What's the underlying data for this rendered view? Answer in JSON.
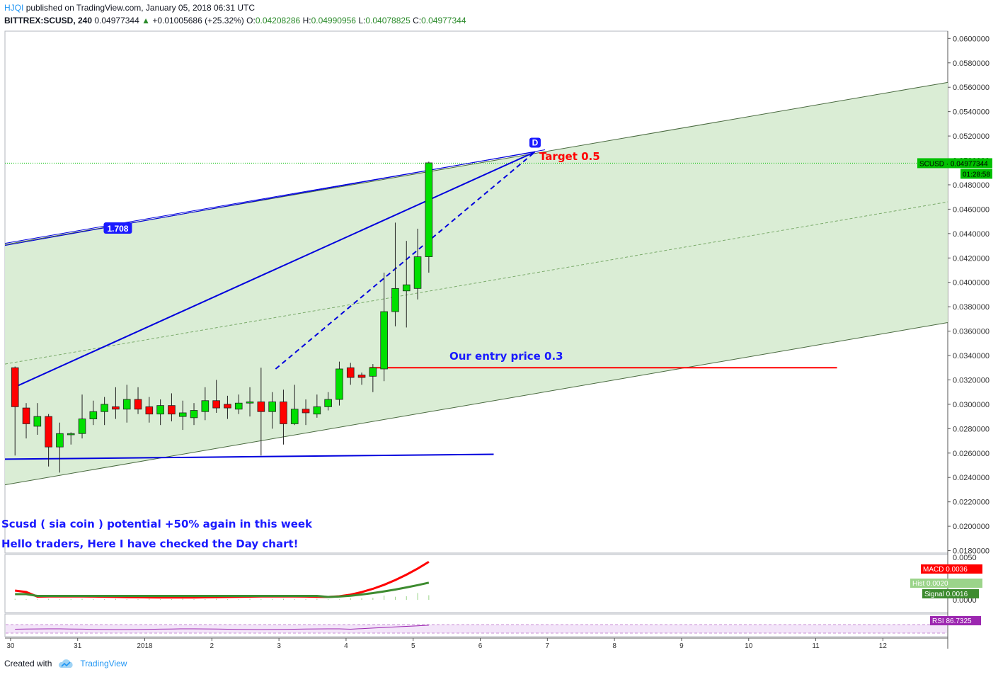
{
  "header": {
    "user": "HJQI",
    "published": "published on TradingView.com, January 05, 2018 06:31 UTC",
    "symbol": "BITTREX:SCUSD, 240",
    "last": "0.04977344",
    "change": "+0.01005686 (+25.32%)",
    "o_label": "O:",
    "o_value": "0.04208286",
    "h_label": "H:",
    "h_value": "0.04990956",
    "l_label": "L:",
    "l_value": "0.04078825",
    "c_label": "C:",
    "c_value": "0.04977344"
  },
  "footer": {
    "created_with": "Created with",
    "brand": "TradingView"
  },
  "chart_data": {
    "type": "candlestick",
    "symbol": "BITTREX:SCUSD",
    "interval": "240",
    "ylim": [
      0.0178,
      0.0606
    ],
    "y_ticks": [
      "0.0600000",
      "0.0580000",
      "0.0560000",
      "0.0540000",
      "0.0520000",
      "0.0500000",
      "0.0480000",
      "0.0460000",
      "0.0440000",
      "0.0420000",
      "0.0400000",
      "0.0380000",
      "0.0360000",
      "0.0340000",
      "0.0320000",
      "0.0300000",
      "0.0280000",
      "0.0260000",
      "0.0240000",
      "0.0220000",
      "0.0200000",
      "0.0180000"
    ],
    "x_labels": [
      {
        "label": "30",
        "bar": -0.4
      },
      {
        "label": "31",
        "bar": 5.6
      },
      {
        "label": "2018",
        "bar": 11.6
      },
      {
        "label": "2",
        "bar": 17.6
      },
      {
        "label": "3",
        "bar": 23.6
      },
      {
        "label": "4",
        "bar": 29.6
      },
      {
        "label": "5",
        "bar": 35.6
      },
      {
        "label": "6",
        "bar": 41.6
      },
      {
        "label": "7",
        "bar": 47.6
      },
      {
        "label": "8",
        "bar": 53.6
      },
      {
        "label": "9",
        "bar": 59.6
      },
      {
        "label": "10",
        "bar": 65.6
      },
      {
        "label": "11",
        "bar": 71.6
      },
      {
        "label": "12",
        "bar": 77.6
      }
    ],
    "bar_range": [
      -0.9,
      83.4
    ],
    "candles": [
      {
        "o": 0.033,
        "h": 0.0331,
        "l": 0.0258,
        "c": 0.0298
      },
      {
        "o": 0.0297,
        "h": 0.0301,
        "l": 0.0272,
        "c": 0.0284
      },
      {
        "o": 0.0282,
        "h": 0.0301,
        "l": 0.0275,
        "c": 0.029
      },
      {
        "o": 0.029,
        "h": 0.0292,
        "l": 0.0249,
        "c": 0.0265
      },
      {
        "o": 0.0265,
        "h": 0.0285,
        "l": 0.0244,
        "c": 0.0276
      },
      {
        "o": 0.0275,
        "h": 0.0277,
        "l": 0.0267,
        "c": 0.0276
      },
      {
        "o": 0.0276,
        "h": 0.0308,
        "l": 0.0272,
        "c": 0.0288
      },
      {
        "o": 0.0288,
        "h": 0.0303,
        "l": 0.0283,
        "c": 0.0294
      },
      {
        "o": 0.0294,
        "h": 0.0306,
        "l": 0.0283,
        "c": 0.03
      },
      {
        "o": 0.0298,
        "h": 0.0314,
        "l": 0.0288,
        "c": 0.0296
      },
      {
        "o": 0.0296,
        "h": 0.0316,
        "l": 0.0285,
        "c": 0.0304
      },
      {
        "o": 0.0304,
        "h": 0.0314,
        "l": 0.0292,
        "c": 0.0296
      },
      {
        "o": 0.0298,
        "h": 0.0306,
        "l": 0.0285,
        "c": 0.0292
      },
      {
        "o": 0.0292,
        "h": 0.0304,
        "l": 0.0283,
        "c": 0.0299
      },
      {
        "o": 0.0299,
        "h": 0.0309,
        "l": 0.0286,
        "c": 0.0292
      },
      {
        "o": 0.029,
        "h": 0.0303,
        "l": 0.0279,
        "c": 0.0293
      },
      {
        "o": 0.0289,
        "h": 0.0301,
        "l": 0.0283,
        "c": 0.0295
      },
      {
        "o": 0.0294,
        "h": 0.0314,
        "l": 0.0287,
        "c": 0.0303
      },
      {
        "o": 0.0303,
        "h": 0.032,
        "l": 0.0293,
        "c": 0.0297
      },
      {
        "o": 0.03,
        "h": 0.0307,
        "l": 0.0288,
        "c": 0.0297
      },
      {
        "o": 0.0296,
        "h": 0.0308,
        "l": 0.0292,
        "c": 0.0301
      },
      {
        "o": 0.0301,
        "h": 0.0314,
        "l": 0.029,
        "c": 0.0302
      },
      {
        "o": 0.0302,
        "h": 0.033,
        "l": 0.0258,
        "c": 0.0294
      },
      {
        "o": 0.0294,
        "h": 0.031,
        "l": 0.028,
        "c": 0.0302
      },
      {
        "o": 0.0302,
        "h": 0.0312,
        "l": 0.0267,
        "c": 0.0284
      },
      {
        "o": 0.0284,
        "h": 0.0316,
        "l": 0.0283,
        "c": 0.0296
      },
      {
        "o": 0.0296,
        "h": 0.0304,
        "l": 0.0283,
        "c": 0.0293
      },
      {
        "o": 0.0292,
        "h": 0.0308,
        "l": 0.0289,
        "c": 0.0298
      },
      {
        "o": 0.0298,
        "h": 0.031,
        "l": 0.0295,
        "c": 0.0304
      },
      {
        "o": 0.0304,
        "h": 0.0335,
        "l": 0.0299,
        "c": 0.0329
      },
      {
        "o": 0.033,
        "h": 0.0334,
        "l": 0.0316,
        "c": 0.0322
      },
      {
        "o": 0.0324,
        "h": 0.0326,
        "l": 0.0316,
        "c": 0.0322
      },
      {
        "o": 0.0323,
        "h": 0.0333,
        "l": 0.031,
        "c": 0.033
      },
      {
        "o": 0.0329,
        "h": 0.0408,
        "l": 0.0319,
        "c": 0.0376
      },
      {
        "o": 0.0376,
        "h": 0.0449,
        "l": 0.0364,
        "c": 0.0395
      },
      {
        "o": 0.0393,
        "h": 0.0434,
        "l": 0.0363,
        "c": 0.0398
      },
      {
        "o": 0.0395,
        "h": 0.0444,
        "l": 0.0386,
        "c": 0.0421
      },
      {
        "o": 0.0421,
        "h": 0.0499,
        "l": 0.0408,
        "c": 0.0498
      }
    ],
    "last_price": 0.04977344,
    "price_badge": "SCUSD · 0.04977344",
    "countdown": "01:28:58",
    "channel": {
      "upper": [
        [
          -0.9,
          0.0431
        ],
        [
          83.4,
          0.0564
        ]
      ],
      "lower": [
        [
          -0.9,
          0.0234
        ],
        [
          83.4,
          0.0367
        ]
      ],
      "mid": [
        [
          -0.9,
          0.0333
        ],
        [
          83.4,
          0.0466
        ]
      ]
    },
    "harmonic": {
      "A": [
        -0.3,
        0.0313
      ],
      "B": [
        23.3,
        0.0329
      ],
      "D": [
        46.5,
        0.0507
      ],
      "X": [
        -0.9,
        0.0432
      ],
      "ratio_label": "1.708",
      "point_label": "D"
    },
    "support_line": [
      [
        -0.9,
        0.0255
      ],
      [
        42.8,
        0.0259
      ]
    ],
    "entry_line": {
      "from": 31.7,
      "to": 73.5,
      "price": 0.033
    },
    "annotations": {
      "target": "Target 0.5",
      "entry": "Our entry price 0.3",
      "title": "Scusd   ( sia coin ) potential +50% again in this week",
      "subtitle": "Hello traders, Here I have checked the Day chart!"
    },
    "macd": {
      "ticks": [
        "0.0050",
        "0.0000"
      ],
      "macd_label": "MACD",
      "macd_value": "0.0036",
      "hist_label": "Hist",
      "hist_value": "0.0020",
      "signal_label": "Signal",
      "signal_value": "0.0016",
      "colors": {
        "macd": "#ff0000",
        "signal": "#3d8b2f",
        "hist": "#9bd48a"
      }
    },
    "rsi": {
      "label": "RSI",
      "value": "86.7325",
      "color": "#9c27b0"
    },
    "colors": {
      "up": "#00e000",
      "down": "#ff0000",
      "channel_fill": "#d8ecd3",
      "pattern": "#0000dd",
      "price": "#00c000"
    }
  }
}
